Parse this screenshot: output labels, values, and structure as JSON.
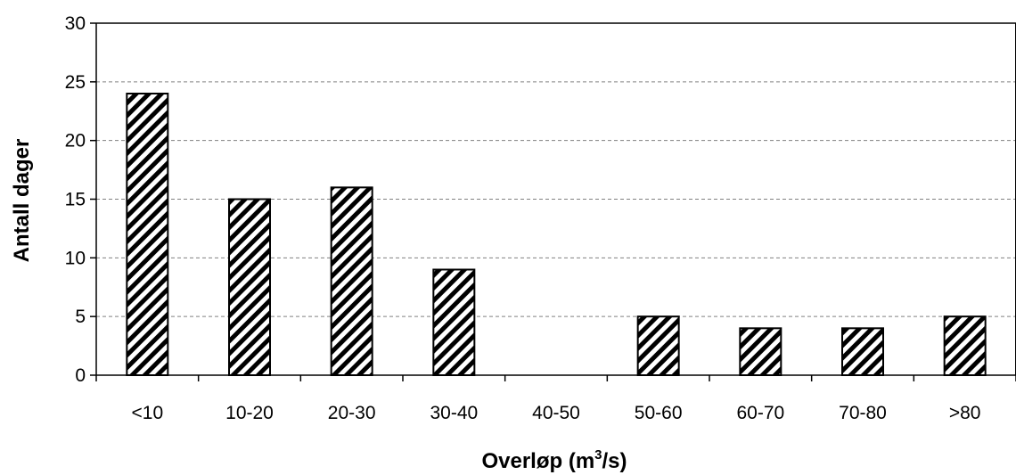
{
  "chart_data": {
    "type": "bar",
    "title": "",
    "xlabel": "Overløp (m",
    "xlabel_sup": "3",
    "xlabel_suffix": "/s)",
    "ylabel": "Antall dager",
    "categories": [
      "<10",
      "10-20",
      "20-30",
      "30-40",
      "40-50",
      "50-60",
      "60-70",
      "70-80",
      ">80"
    ],
    "values": [
      24,
      15,
      16,
      9,
      0,
      5,
      4,
      4,
      5
    ],
    "ylim": [
      0,
      30
    ],
    "yticks": [
      0,
      5,
      10,
      15,
      20,
      25,
      30
    ],
    "grid": "horizontal-dashed",
    "bar_pattern": "diagonal-hatch",
    "colors": {
      "bar_fill": "#ffffff",
      "hatch": "#000000",
      "grid": "#808080",
      "axis": "#000000"
    }
  }
}
